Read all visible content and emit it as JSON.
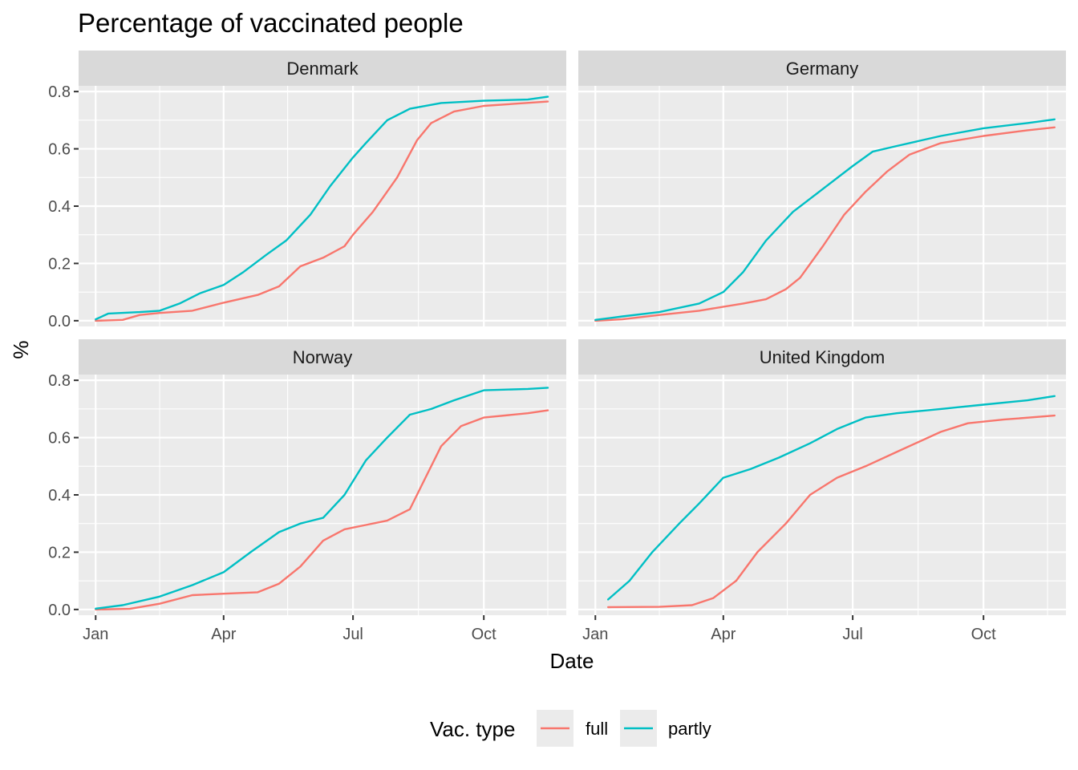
{
  "chart_data": {
    "type": "line",
    "title": "Percentage of vaccinated people",
    "xlabel": "Date",
    "ylabel": "%",
    "facet_layout": "2x2",
    "x_ticks": [
      "Jan",
      "Apr",
      "Jul",
      "Oct"
    ],
    "y_ticks": [
      "0.0",
      "0.2",
      "0.4",
      "0.6",
      "0.8"
    ],
    "ylim": [
      -0.02,
      0.82
    ],
    "xlim": [
      "2020-12-20",
      "2021-11-28"
    ],
    "grid": true,
    "legend": {
      "position": "bottom",
      "title": "Vac. type",
      "entries": [
        {
          "name": "full",
          "color": "#F8766D"
        },
        {
          "name": "partly",
          "color": "#00BFC4"
        }
      ]
    },
    "panels": [
      {
        "name": "Denmark",
        "series": [
          {
            "name": "full",
            "color": "#F8766D",
            "points": [
              [
                "2021-01-01",
                0.0
              ],
              [
                "2021-01-20",
                0.003
              ],
              [
                "2021-02-01",
                0.02
              ],
              [
                "2021-02-15",
                0.027
              ],
              [
                "2021-03-10",
                0.035
              ],
              [
                "2021-04-01",
                0.063
              ],
              [
                "2021-04-25",
                0.09
              ],
              [
                "2021-05-10",
                0.12
              ],
              [
                "2021-05-25",
                0.19
              ],
              [
                "2021-06-10",
                0.22
              ],
              [
                "2021-06-25",
                0.26
              ],
              [
                "2021-07-01",
                0.3
              ],
              [
                "2021-07-15",
                0.38
              ],
              [
                "2021-08-01",
                0.5
              ],
              [
                "2021-08-15",
                0.63
              ],
              [
                "2021-08-25",
                0.69
              ],
              [
                "2021-09-10",
                0.73
              ],
              [
                "2021-10-01",
                0.75
              ],
              [
                "2021-11-15",
                0.765
              ]
            ]
          },
          {
            "name": "partly",
            "color": "#00BFC4",
            "points": [
              [
                "2021-01-01",
                0.005
              ],
              [
                "2021-01-10",
                0.025
              ],
              [
                "2021-02-01",
                0.03
              ],
              [
                "2021-02-15",
                0.035
              ],
              [
                "2021-03-01",
                0.06
              ],
              [
                "2021-03-15",
                0.095
              ],
              [
                "2021-04-01",
                0.125
              ],
              [
                "2021-04-15",
                0.17
              ],
              [
                "2021-05-01",
                0.23
              ],
              [
                "2021-05-15",
                0.28
              ],
              [
                "2021-06-01",
                0.37
              ],
              [
                "2021-06-15",
                0.47
              ],
              [
                "2021-07-01",
                0.57
              ],
              [
                "2021-07-10",
                0.62
              ],
              [
                "2021-07-25",
                0.7
              ],
              [
                "2021-08-10",
                0.74
              ],
              [
                "2021-09-01",
                0.76
              ],
              [
                "2021-10-01",
                0.768
              ],
              [
                "2021-11-01",
                0.772
              ],
              [
                "2021-11-15",
                0.782
              ]
            ]
          }
        ]
      },
      {
        "name": "Germany",
        "series": [
          {
            "name": "full",
            "color": "#F8766D",
            "points": [
              [
                "2021-01-01",
                0.0
              ],
              [
                "2021-01-20",
                0.005
              ],
              [
                "2021-02-15",
                0.02
              ],
              [
                "2021-03-15",
                0.035
              ],
              [
                "2021-04-15",
                0.06
              ],
              [
                "2021-05-01",
                0.075
              ],
              [
                "2021-05-15",
                0.11
              ],
              [
                "2021-05-25",
                0.15
              ],
              [
                "2021-06-10",
                0.26
              ],
              [
                "2021-06-25",
                0.37
              ],
              [
                "2021-07-10",
                0.45
              ],
              [
                "2021-07-25",
                0.52
              ],
              [
                "2021-08-10",
                0.58
              ],
              [
                "2021-09-01",
                0.62
              ],
              [
                "2021-10-01",
                0.645
              ],
              [
                "2021-11-01",
                0.665
              ],
              [
                "2021-11-20",
                0.675
              ]
            ]
          },
          {
            "name": "partly",
            "color": "#00BFC4",
            "points": [
              [
                "2021-01-01",
                0.003
              ],
              [
                "2021-01-20",
                0.015
              ],
              [
                "2021-02-15",
                0.03
              ],
              [
                "2021-03-15",
                0.06
              ],
              [
                "2021-04-01",
                0.1
              ],
              [
                "2021-04-15",
                0.17
              ],
              [
                "2021-05-01",
                0.28
              ],
              [
                "2021-05-20",
                0.38
              ],
              [
                "2021-06-10",
                0.46
              ],
              [
                "2021-07-01",
                0.54
              ],
              [
                "2021-07-15",
                0.59
              ],
              [
                "2021-08-01",
                0.61
              ],
              [
                "2021-09-01",
                0.645
              ],
              [
                "2021-10-01",
                0.672
              ],
              [
                "2021-11-01",
                0.69
              ],
              [
                "2021-11-20",
                0.703
              ]
            ]
          }
        ]
      },
      {
        "name": "Norway",
        "series": [
          {
            "name": "full",
            "color": "#F8766D",
            "points": [
              [
                "2021-01-01",
                0.0
              ],
              [
                "2021-01-25",
                0.002
              ],
              [
                "2021-02-15",
                0.02
              ],
              [
                "2021-03-10",
                0.05
              ],
              [
                "2021-04-01",
                0.055
              ],
              [
                "2021-04-25",
                0.06
              ],
              [
                "2021-05-10",
                0.09
              ],
              [
                "2021-05-25",
                0.15
              ],
              [
                "2021-06-10",
                0.24
              ],
              [
                "2021-06-25",
                0.28
              ],
              [
                "2021-07-10",
                0.295
              ],
              [
                "2021-07-25",
                0.31
              ],
              [
                "2021-08-10",
                0.35
              ],
              [
                "2021-08-20",
                0.45
              ],
              [
                "2021-09-01",
                0.57
              ],
              [
                "2021-09-15",
                0.64
              ],
              [
                "2021-10-01",
                0.67
              ],
              [
                "2021-11-01",
                0.685
              ],
              [
                "2021-11-15",
                0.695
              ]
            ]
          },
          {
            "name": "partly",
            "color": "#00BFC4",
            "points": [
              [
                "2021-01-01",
                0.003
              ],
              [
                "2021-01-20",
                0.015
              ],
              [
                "2021-02-15",
                0.045
              ],
              [
                "2021-03-10",
                0.085
              ],
              [
                "2021-04-01",
                0.13
              ],
              [
                "2021-04-20",
                0.2
              ],
              [
                "2021-05-10",
                0.27
              ],
              [
                "2021-05-25",
                0.3
              ],
              [
                "2021-06-10",
                0.32
              ],
              [
                "2021-06-25",
                0.4
              ],
              [
                "2021-07-10",
                0.52
              ],
              [
                "2021-07-25",
                0.6
              ],
              [
                "2021-08-10",
                0.68
              ],
              [
                "2021-08-25",
                0.7
              ],
              [
                "2021-09-10",
                0.73
              ],
              [
                "2021-10-01",
                0.765
              ],
              [
                "2021-11-01",
                0.77
              ],
              [
                "2021-11-15",
                0.774
              ]
            ]
          }
        ]
      },
      {
        "name": "United Kingdom",
        "series": [
          {
            "name": "full",
            "color": "#F8766D",
            "points": [
              [
                "2021-01-10",
                0.008
              ],
              [
                "2021-02-15",
                0.009
              ],
              [
                "2021-03-10",
                0.015
              ],
              [
                "2021-03-25",
                0.04
              ],
              [
                "2021-04-10",
                0.1
              ],
              [
                "2021-04-25",
                0.2
              ],
              [
                "2021-05-15",
                0.3
              ],
              [
                "2021-06-01",
                0.4
              ],
              [
                "2021-06-20",
                0.46
              ],
              [
                "2021-07-10",
                0.5
              ],
              [
                "2021-08-01",
                0.55
              ],
              [
                "2021-09-01",
                0.62
              ],
              [
                "2021-09-20",
                0.65
              ],
              [
                "2021-10-15",
                0.663
              ],
              [
                "2021-11-20",
                0.677
              ]
            ]
          },
          {
            "name": "partly",
            "color": "#00BFC4",
            "points": [
              [
                "2021-01-10",
                0.035
              ],
              [
                "2021-01-25",
                0.1
              ],
              [
                "2021-02-10",
                0.2
              ],
              [
                "2021-03-01",
                0.3
              ],
              [
                "2021-03-15",
                0.37
              ],
              [
                "2021-04-01",
                0.46
              ],
              [
                "2021-04-20",
                0.49
              ],
              [
                "2021-05-10",
                0.53
              ],
              [
                "2021-06-01",
                0.58
              ],
              [
                "2021-06-20",
                0.63
              ],
              [
                "2021-07-10",
                0.67
              ],
              [
                "2021-08-01",
                0.685
              ],
              [
                "2021-09-01",
                0.7
              ],
              [
                "2021-10-01",
                0.715
              ],
              [
                "2021-11-01",
                0.73
              ],
              [
                "2021-11-20",
                0.745
              ]
            ]
          }
        ]
      }
    ]
  }
}
